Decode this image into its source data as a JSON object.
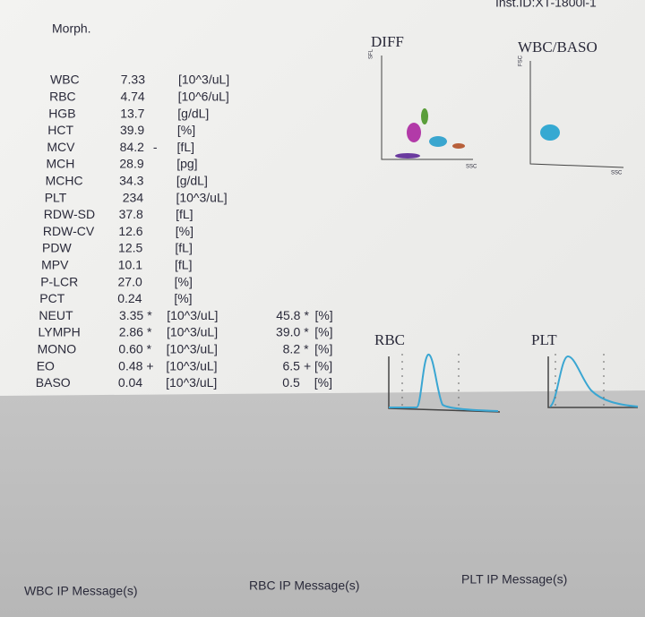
{
  "header": {
    "inst_id": "Inst.ID:XT-1800i-1",
    "section": "Morph."
  },
  "results": [
    {
      "name": "WBC",
      "value": "7.33",
      "unit": "[10^3/uL]"
    },
    {
      "name": "RBC",
      "value": "4.74",
      "unit": "[10^6/uL]"
    },
    {
      "name": "HGB",
      "value": "13.7",
      "unit": "[g/dL]"
    },
    {
      "name": "HCT",
      "value": "39.9",
      "unit": "[%]"
    },
    {
      "name": "MCV",
      "value": "84.2",
      "flag": "-",
      "unit": "[fL]"
    },
    {
      "name": "MCH",
      "value": "28.9",
      "unit": "[pg]"
    },
    {
      "name": "MCHC",
      "value": "34.3",
      "unit": "[g/dL]"
    },
    {
      "name": "PLT",
      "value": "234",
      "unit": "[10^3/uL]"
    },
    {
      "name": "RDW-SD",
      "value": "37.8",
      "unit": "[fL]"
    },
    {
      "name": "RDW-CV",
      "value": "12.6",
      "unit": "[%]"
    },
    {
      "name": "PDW",
      "value": "12.5",
      "unit": "[fL]"
    },
    {
      "name": "MPV",
      "value": "10.1",
      "unit": "[fL]"
    },
    {
      "name": "P-LCR",
      "value": "27.0",
      "unit": "[%]"
    },
    {
      "name": "PCT",
      "value": "0.24",
      "unit": "[%]"
    }
  ],
  "differential": [
    {
      "name": "NEUT",
      "value": "3.35",
      "flag": "*",
      "unit": "[10^3/uL]",
      "percent": "45.8",
      "percent_flag": "*",
      "percent_unit": "[%]"
    },
    {
      "name": "LYMPH",
      "value": "2.86",
      "flag": "*",
      "unit": "[10^3/uL]",
      "percent": "39.0",
      "percent_flag": "*",
      "percent_unit": "[%]"
    },
    {
      "name": "MONO",
      "value": "0.60",
      "flag": "*",
      "unit": "[10^3/uL]",
      "percent": "8.2",
      "percent_flag": "*",
      "percent_unit": "[%]"
    },
    {
      "name": "EO",
      "value": "0.48",
      "flag": "+",
      "unit": "[10^3/uL]",
      "percent": "6.5",
      "percent_flag": "+",
      "percent_unit": "[%]"
    },
    {
      "name": "BASO",
      "value": "0.04",
      "unit": "[10^3/uL]",
      "percent": "0.5",
      "percent_unit": "[%]"
    }
  ],
  "plots": {
    "diff": {
      "title": "DIFF",
      "y_label": "SFL",
      "x_label": "SSC"
    },
    "wbc_baso": {
      "title": "WBC/BASO",
      "y_label": "FSC",
      "x_label": "SSC"
    },
    "rbc": {
      "title": "RBC"
    },
    "plt": {
      "title": "PLT"
    }
  },
  "footer": {
    "wbc_message": "WBC IP Message(s)",
    "rbc_message": "RBC IP Message(s)",
    "plt_message": "PLT IP Message(s)"
  }
}
